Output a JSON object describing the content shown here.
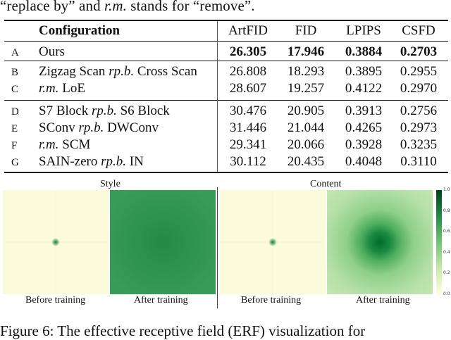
{
  "caption_top": "“replace by” and r.m. stands for “remove”.",
  "table": {
    "header": [
      "Configuration",
      "ArtFID",
      "FID",
      "LPIPS",
      "CSFD"
    ],
    "rows": [
      {
        "id": "A",
        "config": "Ours",
        "vals": [
          "26.305",
          "17.946",
          "0.3884",
          "0.2703"
        ],
        "bold": true
      },
      {
        "id": "B",
        "config": "Zigzag Scan rp.b. Cross Scan",
        "vals": [
          "26.808",
          "18.293",
          "0.3895",
          "0.2955"
        ]
      },
      {
        "id": "C",
        "config": "r.m. LoE",
        "vals": [
          "28.607",
          "19.257",
          "0.4122",
          "0.2970"
        ]
      },
      {
        "id": "D",
        "config": "S7 Block rp.b. S6 Block",
        "vals": [
          "30.476",
          "20.905",
          "0.3913",
          "0.2756"
        ]
      },
      {
        "id": "E",
        "config": "SConv rp.b. DWConv",
        "vals": [
          "31.446",
          "21.044",
          "0.4265",
          "0.2973"
        ]
      },
      {
        "id": "F",
        "config": "r.m. SCM",
        "vals": [
          "29.341",
          "20.066",
          "0.3928",
          "0.3235"
        ]
      },
      {
        "id": "G",
        "config": "SAIN-zero rp.b. IN",
        "vals": [
          "30.112",
          "20.435",
          "0.4048",
          "0.3110"
        ]
      }
    ]
  },
  "figure": {
    "group_labels": {
      "style": "Style",
      "content": "Content"
    },
    "panels": [
      {
        "label": "Before training",
        "kind": "point"
      },
      {
        "label": "After training",
        "kind": "uniform"
      },
      {
        "label": "Before training",
        "kind": "point"
      },
      {
        "label": "After training",
        "kind": "blob"
      }
    ],
    "colorbar_ticks": [
      "1.0",
      "0.8",
      "0.6",
      "0.4",
      "0.2",
      "0.0"
    ]
  },
  "caption_bottom": "Figure 6: The effective receptive field (ERF) visualization for"
}
